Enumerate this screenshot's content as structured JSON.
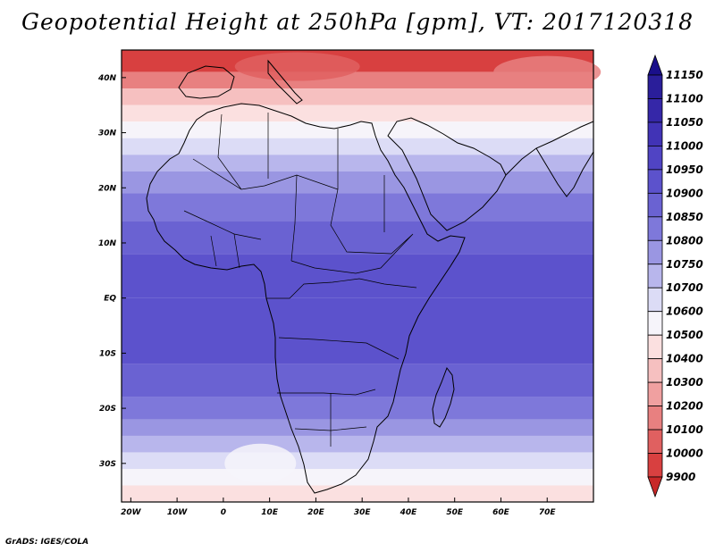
{
  "title": "Geopotential Height at 250hPa [gpm], VT: 2017120318",
  "credit": "GrADS: IGES/COLA",
  "map": {
    "region": "Africa",
    "lat_range": [
      -37,
      45
    ],
    "lon_range": [
      -22,
      80
    ]
  },
  "chart_data": {
    "type": "heatmap",
    "variable": "Geopotential Height",
    "level": "250hPa",
    "units": "gpm",
    "valid_time": "2017120318",
    "lat_ticks": [
      {
        "value": 40,
        "label": "40N"
      },
      {
        "value": 30,
        "label": "30N"
      },
      {
        "value": 20,
        "label": "20N"
      },
      {
        "value": 10,
        "label": "10N"
      },
      {
        "value": 0,
        "label": "EQ"
      },
      {
        "value": -10,
        "label": "10S"
      },
      {
        "value": -20,
        "label": "20S"
      },
      {
        "value": -30,
        "label": "30S"
      }
    ],
    "lon_ticks": [
      {
        "value": -20,
        "label": "20W"
      },
      {
        "value": -10,
        "label": "10W"
      },
      {
        "value": 0,
        "label": "0"
      },
      {
        "value": 10,
        "label": "10E"
      },
      {
        "value": 20,
        "label": "20E"
      },
      {
        "value": 30,
        "label": "30E"
      },
      {
        "value": 40,
        "label": "40E"
      },
      {
        "value": 50,
        "label": "50E"
      },
      {
        "value": 60,
        "label": "60E"
      },
      {
        "value": 70,
        "label": "70E"
      }
    ],
    "colorbar": {
      "levels": [
        "11150",
        "11100",
        "11050",
        "11000",
        "10950",
        "10900",
        "10850",
        "10800",
        "10750",
        "10700",
        "10600",
        "10500",
        "10400",
        "10300",
        "10200",
        "10100",
        "10000",
        "9900"
      ],
      "colors": [
        "#1a0f8a",
        "#2a1e9a",
        "#3527a8",
        "#4133b6",
        "#5044c4",
        "#5c52cc",
        "#6a62d2",
        "#7e78da",
        "#9a96e2",
        "#b8b6ec",
        "#dcdcf6",
        "#f6f4fa",
        "#fbe0e0",
        "#f6c0c0",
        "#f0a0a0",
        "#e88080",
        "#e06060",
        "#d84040",
        "#c82828"
      ]
    }
  }
}
